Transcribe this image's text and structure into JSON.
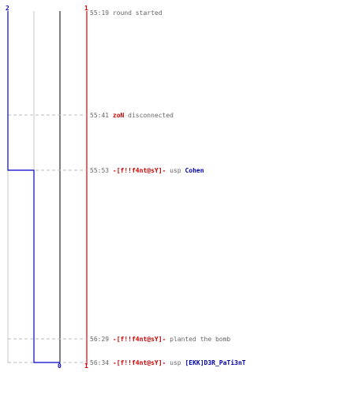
{
  "colors": {
    "team_blue": "#0000cc",
    "team_red": "#dd0000",
    "grid": "#c8c8c8",
    "dashed": "#bbbbbb",
    "text": "#666666",
    "name_red": "#cc0000",
    "name_blue": "#0000aa"
  },
  "axis_labels": {
    "blue_top": "2",
    "red_top": "1",
    "zero_bottom": "0",
    "red_bottom": "1"
  },
  "chart_data": {
    "type": "step",
    "time_axis": [
      "55:19",
      "55:41",
      "55:53",
      "56:29",
      "56:34"
    ],
    "series": [
      {
        "team": "blue",
        "counts": [
          2,
          2,
          1,
          1,
          0
        ]
      },
      {
        "team": "red",
        "counts": [
          1,
          1,
          1,
          1,
          1
        ]
      }
    ]
  },
  "events": [
    {
      "time": "55:19",
      "parts": [
        {
          "text": "round started",
          "style": "plain"
        }
      ]
    },
    {
      "time": "55:41",
      "parts": [
        {
          "text": "zoN",
          "style": "red"
        },
        {
          "text": " disconnected",
          "style": "plain"
        }
      ]
    },
    {
      "time": "55:53",
      "parts": [
        {
          "text": "-[f!!f4nt@sY]-",
          "style": "red"
        },
        {
          "text": " usp ",
          "style": "plain"
        },
        {
          "text": "Cohen",
          "style": "blue"
        }
      ]
    },
    {
      "time": "56:29",
      "parts": [
        {
          "text": "-[f!!f4nt@sY]-",
          "style": "red"
        },
        {
          "text": " planted the bomb",
          "style": "plain"
        }
      ]
    },
    {
      "time": "56:34",
      "parts": [
        {
          "text": "-[f!!f4nt@sY]-",
          "style": "red"
        },
        {
          "text": " usp ",
          "style": "plain"
        },
        {
          "text": "[EKK]D3R_PaTi3nT",
          "style": "blue"
        }
      ]
    }
  ]
}
